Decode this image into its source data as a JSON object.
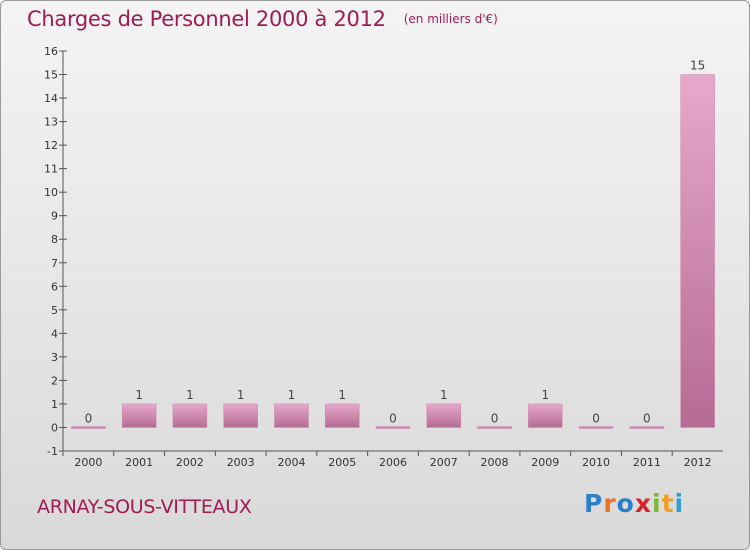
{
  "header": {
    "title": "Charges de Personnel 2000 à 2012",
    "subtitle": "(en milliers d'€)"
  },
  "footer": {
    "location": "ARNAY-SOUS-VITTEAUX",
    "logo_letters": [
      {
        "char": "P",
        "color": "#2a7fc9"
      },
      {
        "char": "r",
        "color": "#e8742a"
      },
      {
        "char": "o",
        "color": "#2a7fc9"
      },
      {
        "char": "x",
        "color": "#d6262c"
      },
      {
        "char": "i",
        "color": "#7cb82f"
      },
      {
        "char": "t",
        "color": "#f0a020"
      },
      {
        "char": "i",
        "color": "#2a9fd6"
      }
    ]
  },
  "colors": {
    "bar_top": "#e6a8cb",
    "bar_bottom": "#b56b93",
    "title": "#a01a54"
  },
  "chart_data": {
    "type": "bar",
    "title": "Charges de Personnel 2000 à 2012",
    "subtitle": "(en milliers d'€)",
    "categories": [
      "2000",
      "2001",
      "2002",
      "2003",
      "2004",
      "2005",
      "2006",
      "2007",
      "2008",
      "2009",
      "2010",
      "2011",
      "2012"
    ],
    "values": [
      0,
      1,
      1,
      1,
      1,
      1,
      0,
      1,
      0,
      1,
      0,
      0,
      15
    ],
    "data_labels": [
      "0",
      "1",
      "1",
      "1",
      "1",
      "1",
      "0",
      "1",
      "0",
      "1",
      "0",
      "0",
      "15"
    ],
    "xlabel": "",
    "ylabel": "",
    "ylim": [
      -1,
      16
    ],
    "yticks": [
      -1,
      0,
      1,
      2,
      3,
      4,
      5,
      6,
      7,
      8,
      9,
      10,
      11,
      12,
      13,
      14,
      15,
      16
    ],
    "grid": false,
    "legend": "none"
  }
}
